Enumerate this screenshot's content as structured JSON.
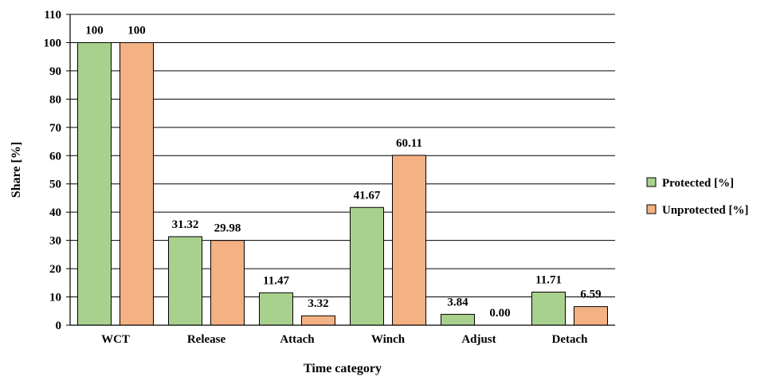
{
  "chart_data": {
    "type": "bar",
    "xlabel": "Time category",
    "ylabel": "Share [%]",
    "ylim": [
      0,
      110
    ],
    "ytick_step": 10,
    "grid": true,
    "legend_position": "right",
    "categories": [
      "WCT",
      "Release",
      "Attach",
      "Winch",
      "Adjust",
      "Detach"
    ],
    "series": [
      {
        "name": "Protected [%]",
        "color": "#A9D18E",
        "values": [
          100,
          31.32,
          11.47,
          41.67,
          3.84,
          11.71
        ],
        "labels": [
          "100",
          "31.32",
          "11.47",
          "41.67",
          "3.84",
          "11.71"
        ]
      },
      {
        "name": "Unprotected [%]",
        "color": "#F4B183",
        "values": [
          100,
          29.98,
          3.32,
          60.11,
          0.0,
          6.59
        ],
        "labels": [
          "100",
          "29.98",
          "3.32",
          "60.11",
          "0.00",
          "6.59"
        ]
      }
    ]
  }
}
